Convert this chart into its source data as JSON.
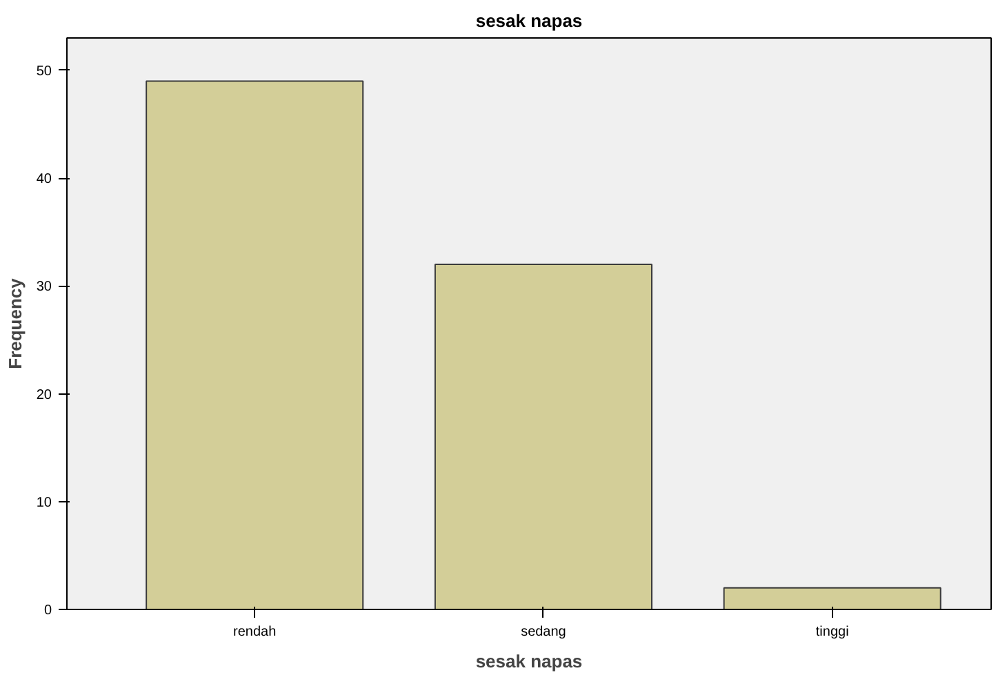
{
  "chart_data": {
    "type": "bar",
    "title": "sesak napas",
    "xlabel": "sesak napas",
    "ylabel": "Frequency",
    "categories": [
      "rendah",
      "sedang",
      "tinggi"
    ],
    "values": [
      49,
      32,
      2
    ],
    "color": "#d3ce98",
    "ylim": [
      0,
      53
    ],
    "yticks": [
      0,
      10,
      20,
      30,
      40,
      50
    ],
    "grid": false
  }
}
